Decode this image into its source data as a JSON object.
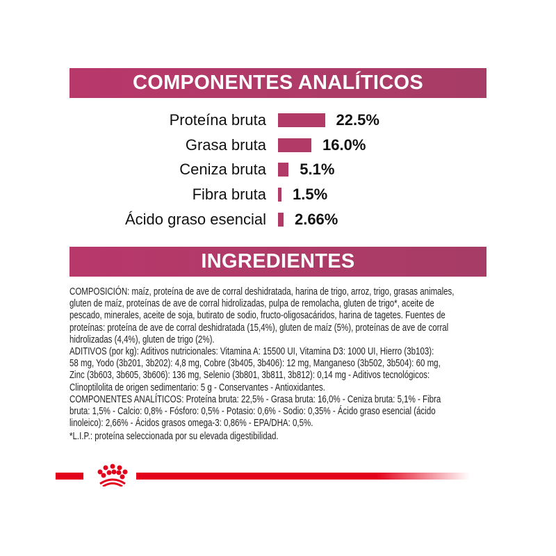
{
  "analytic": {
    "title": "COMPONENTES ANALÍTICOS",
    "bar_color": "#b13a67",
    "items": [
      {
        "label": "Proteína bruta",
        "value": 22.5,
        "text": "22.5%"
      },
      {
        "label": "Grasa bruta",
        "value": 16.0,
        "text": "16.0%"
      },
      {
        "label": "Ceniza bruta",
        "value": 5.1,
        "text": "5.1%"
      },
      {
        "label": "Fibra bruta",
        "value": 1.5,
        "text": "1.5%"
      },
      {
        "label": "Ácido graso esencial",
        "value": 2.66,
        "text": "2.66%"
      }
    ]
  },
  "ingredients": {
    "title": "INGREDIENTES",
    "lines": [
      "COMPOSICIÓN: maíz, proteína de ave de corral deshidratada, harina de trigo, arroz, trigo, grasas animales,",
      "gluten de maíz, proteínas de ave de corral hidrolizadas, pulpa de remolacha, gluten de trigo*, aceite de",
      "pescado, minerales, aceite de soja, butirato de sodio, fructo-oligosacáridos, harina de tagetes. Fuentes de",
      "proteínas: proteína de ave de corral deshidratada (15,4%), gluten de maíz (5%), proteínas de ave de corral",
      "hidrolizadas (4,4%), gluten de trigo (2%).",
      "ADITIVOS (por kg): Aditivos nutricionales: Vitamina A: 15500 UI, Vitamina D3: 1000 UI, Hierro (3b103):",
      "58 mg, Yodo (3b201, 3b202): 4,8 mg, Cobre (3b405, 3b406): 12 mg, Manganeso (3b502, 3b504): 60 mg,",
      "Zinc (3b603, 3b605, 3b606): 136 mg, Selenio (3b801, 3b811, 3b812): 0,14 mg - Aditivos tecnológicos:",
      "Clinoptilolita de origen sedimentario: 5 g - Conservantes - Antioxidantes.",
      "COMPONENTES ANALÍTICOS: Proteína bruta: 22,5% - Grasa bruta: 16,0% - Ceniza bruta: 5,1% - Fibra",
      "bruta: 1,5% - Calcio: 0,8% - Fósforo: 0,5% - Potasio: 0,6% - Sodio: 0,35% - Ácido graso esencial (ácido",
      "linoleico): 2,66% - Ácidos grasos omega-3: 0,86% - EPA/DHA: 0,5%."
    ],
    "footnote": "*L.I.P.: proteína seleccionada por su elevada digestibilidad."
  },
  "logo": {
    "icon": "crown-icon",
    "color": "#e2001a"
  }
}
